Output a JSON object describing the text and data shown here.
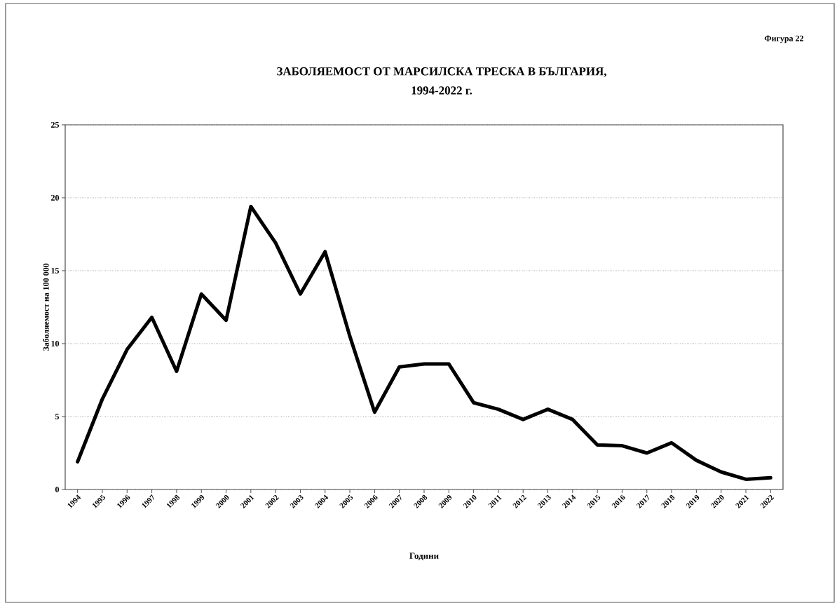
{
  "chart_data": {
    "type": "line",
    "title": "ЗАБОЛЯЕМОСТ ОТ МАРСИЛСКА ТРЕСКА В БЪЛГАРИЯ,",
    "subtitle": "1994-2022 г.",
    "xlabel": "Години",
    "ylabel": "Заболяемост на 100 000",
    "annotations": [
      "Фигура 22"
    ],
    "categories": [
      "1994",
      "1995",
      "1996",
      "1997",
      "1998",
      "1999",
      "2000",
      "2001",
      "2002",
      "2003",
      "2004",
      "2005",
      "2006",
      "2007",
      "2008",
      "2009",
      "2010",
      "2011",
      "2012",
      "2013",
      "2014",
      "2015",
      "2016",
      "2017",
      "2018",
      "2019",
      "2020",
      "2021",
      "2022"
    ],
    "series": [
      {
        "color": "#000000",
        "values": [
          1.9,
          6.2,
          9.6,
          11.8,
          8.1,
          13.4,
          11.6,
          19.4,
          16.9,
          13.4,
          16.3,
          10.5,
          5.3,
          8.4,
          8.6,
          8.6,
          5.95,
          5.5,
          4.8,
          5.5,
          4.8,
          3.05,
          3.0,
          2.5,
          3.2,
          2.0,
          1.2,
          0.7,
          0.8
        ]
      }
    ],
    "ylim": [
      0,
      25
    ],
    "yticks": [
      0,
      5,
      10,
      15,
      20,
      25
    ],
    "grid": "y",
    "marker": "none",
    "line_style": "solid"
  }
}
